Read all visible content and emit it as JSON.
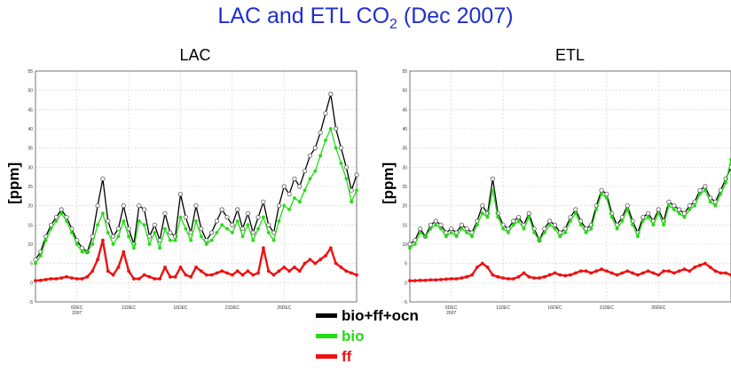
{
  "title": "LAC and ETL CO",
  "title_sub": "2",
  "title_tail": " (Dec 2007)",
  "colors": {
    "total": "#000000",
    "bio": "#22dd11",
    "ff": "#ee1111",
    "title": "#1f2fd0"
  },
  "legend": [
    {
      "label": "bio+ff+ocn",
      "color": "#000000"
    },
    {
      "label": "bio",
      "color": "#22dd11"
    },
    {
      "label": "ff",
      "color": "#ee1111"
    }
  ],
  "chart_data": [
    {
      "type": "line",
      "title": "LAC",
      "ylabel": "[ppm]",
      "xlabel": "",
      "xlim": [
        2,
        33
      ],
      "ylim": [
        -5,
        55
      ],
      "yticks": [
        -5,
        0,
        5,
        10,
        15,
        20,
        25,
        30,
        35,
        40,
        45,
        50,
        55
      ],
      "xticks": [
        {
          "x": 6,
          "label": "6DEC",
          "label2": "2007"
        },
        {
          "x": 11,
          "label": "11DEC"
        },
        {
          "x": 16,
          "label": "16DEC"
        },
        {
          "x": 21,
          "label": "21DEC"
        },
        {
          "x": 26,
          "label": "26DEC"
        }
      ],
      "grid": true,
      "x": [
        2,
        2.5,
        3,
        3.5,
        4,
        4.5,
        5,
        5.5,
        6,
        6.5,
        7,
        7.5,
        8,
        8.5,
        9,
        9.5,
        10,
        10.5,
        11,
        11.5,
        12,
        12.5,
        13,
        13.5,
        14,
        14.5,
        15,
        15.5,
        16,
        16.5,
        17,
        17.5,
        18,
        18.5,
        19,
        19.5,
        20,
        20.5,
        21,
        21.5,
        22,
        22.5,
        23,
        23.5,
        24,
        24.5,
        25,
        25.5,
        26,
        26.5,
        27,
        27.5,
        28,
        28.5,
        29,
        29.5,
        30,
        30.5,
        31,
        31.5,
        32,
        32.5,
        33
      ],
      "series": [
        {
          "name": "bio+ff+ocn",
          "color": "#000000",
          "values": [
            6,
            8,
            12,
            15,
            17,
            19,
            17,
            14,
            11,
            9,
            8,
            12,
            20,
            27,
            16,
            12,
            14,
            20,
            14,
            10,
            20,
            19,
            12,
            15,
            11,
            18,
            13,
            12,
            23,
            17,
            13,
            20,
            14,
            11,
            13,
            16,
            19,
            17,
            15,
            19,
            14,
            18,
            13,
            17,
            21,
            15,
            13,
            20,
            25,
            23,
            27,
            25,
            29,
            33,
            35,
            39,
            44,
            49,
            40,
            35,
            30,
            24,
            28
          ]
        },
        {
          "name": "bio",
          "color": "#22dd11",
          "values": [
            5,
            7,
            11,
            14,
            16,
            18,
            16,
            13,
            10,
            8,
            8,
            10,
            15,
            18,
            13,
            10,
            12,
            16,
            12,
            9,
            16,
            15,
            10,
            13,
            9,
            14,
            11,
            11,
            17,
            14,
            11,
            16,
            12,
            10,
            11,
            13,
            15,
            14,
            13,
            16,
            12,
            15,
            11,
            14,
            17,
            13,
            11,
            16,
            20,
            19,
            22,
            21,
            24,
            27,
            29,
            33,
            37,
            40,
            35,
            31,
            27,
            21,
            24
          ]
        },
        {
          "name": "ff",
          "color": "#ee1111",
          "values": [
            0.5,
            0.6,
            0.8,
            1,
            1,
            1.2,
            1.5,
            1.2,
            1,
            1,
            1.5,
            3,
            6,
            11,
            3,
            2,
            4,
            8,
            3,
            1,
            1,
            2,
            1.5,
            1,
            1,
            4,
            1.5,
            1.5,
            4,
            2,
            1.5,
            4,
            3,
            2,
            2,
            2.5,
            3,
            2.5,
            2,
            3,
            2,
            3,
            2,
            2.5,
            9,
            3,
            2,
            3,
            4,
            3,
            4,
            3,
            5,
            6,
            5,
            6,
            7,
            9,
            5,
            4,
            3,
            2.5,
            2
          ]
        }
      ]
    },
    {
      "type": "line",
      "title": "ETL",
      "ylabel": "[ppm]",
      "xlabel": "",
      "xlim": [
        2,
        33
      ],
      "ylim": [
        -5,
        55
      ],
      "yticks": [
        -5,
        0,
        5,
        10,
        15,
        20,
        25,
        30,
        35,
        40,
        45,
        50,
        55
      ],
      "xticks": [
        {
          "x": 6,
          "label": "6DEC",
          "label2": "2007"
        },
        {
          "x": 11,
          "label": "11DEC"
        },
        {
          "x": 16,
          "label": "16DEC"
        },
        {
          "x": 21,
          "label": "21DEC"
        },
        {
          "x": 26,
          "label": "26DEC"
        }
      ],
      "grid": true,
      "x": [
        2,
        2.5,
        3,
        3.5,
        4,
        4.5,
        5,
        5.5,
        6,
        6.5,
        7,
        7.5,
        8,
        8.5,
        9,
        9.5,
        10,
        10.5,
        11,
        11.5,
        12,
        12.5,
        13,
        13.5,
        14,
        14.5,
        15,
        15.5,
        16,
        16.5,
        17,
        17.5,
        18,
        18.5,
        19,
        19.5,
        20,
        20.5,
        21,
        21.5,
        22,
        22.5,
        23,
        23.5,
        24,
        24.5,
        25,
        25.5,
        26,
        26.5,
        27,
        27.5,
        28,
        28.5,
        29,
        29.5,
        30,
        30.5,
        31,
        31.5,
        32,
        32.5,
        33
      ],
      "series": [
        {
          "name": "bio+ff+ocn",
          "color": "#000000",
          "values": [
            10,
            11,
            14,
            12,
            15,
            16,
            15,
            13,
            14,
            13,
            15,
            14,
            13,
            16,
            20,
            18,
            27,
            18,
            15,
            14,
            16,
            17,
            15,
            18,
            14,
            11,
            14,
            16,
            15,
            13,
            14,
            17,
            19,
            16,
            14,
            15,
            20,
            24,
            23,
            18,
            15,
            17,
            20,
            16,
            13,
            17,
            18,
            16,
            19,
            16,
            21,
            20,
            19,
            18,
            20,
            21,
            24,
            25,
            22,
            21,
            24,
            27,
            30
          ]
        },
        {
          "name": "bio",
          "color": "#22dd11",
          "values": [
            9,
            10,
            13,
            12,
            14,
            15,
            14,
            12,
            13,
            12,
            14,
            13,
            12,
            15,
            18,
            17,
            24,
            17,
            14,
            13,
            15,
            16,
            14,
            17,
            13,
            11,
            13,
            15,
            14,
            12,
            13,
            16,
            18,
            15,
            13,
            14,
            19,
            23,
            22,
            17,
            14,
            16,
            19,
            15,
            12,
            16,
            17,
            15,
            18,
            15,
            20,
            19,
            18,
            17,
            19,
            20,
            23,
            24,
            21,
            20,
            23,
            26,
            32
          ]
        },
        {
          "name": "ff",
          "color": "#ee1111",
          "values": [
            0.5,
            0.5,
            0.6,
            0.6,
            0.7,
            0.7,
            0.8,
            0.9,
            1,
            1,
            1.2,
            1.5,
            2,
            4,
            5,
            4,
            2,
            1.5,
            1.2,
            1,
            1,
            1.5,
            2.5,
            1.5,
            1.2,
            1.2,
            1.5,
            2,
            2.5,
            2,
            1.8,
            2,
            2.5,
            3,
            3,
            2.5,
            3,
            3.5,
            3,
            2.5,
            2,
            2.5,
            3,
            2.5,
            2,
            2.5,
            3,
            2.5,
            2,
            3,
            3,
            2.5,
            3,
            3.5,
            3,
            4,
            4.5,
            5,
            4,
            3,
            2.5,
            2.5,
            2
          ]
        }
      ]
    }
  ]
}
